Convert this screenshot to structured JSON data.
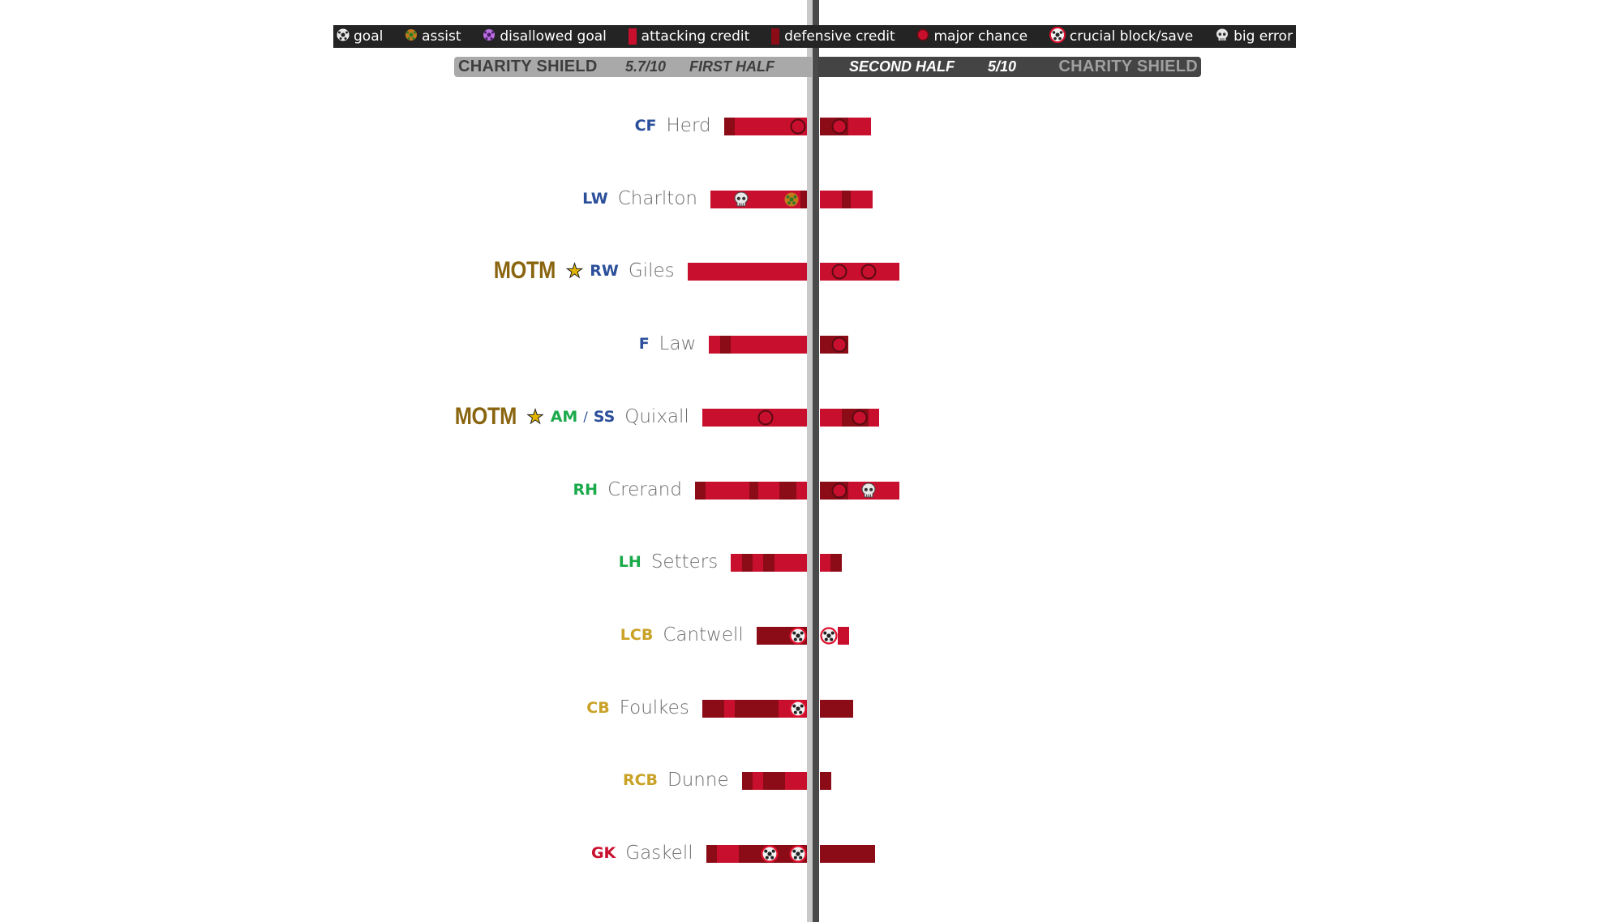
{
  "legend": {
    "items": [
      {
        "icon": "goal-icon",
        "label": "goal"
      },
      {
        "icon": "assist-icon",
        "label": "assist"
      },
      {
        "icon": "disallowed-goal-icon",
        "label": "disallowed goal"
      },
      {
        "icon": "attacking-credit-swatch",
        "label": "attacking credit"
      },
      {
        "icon": "defensive-credit-swatch",
        "label": "defensive credit"
      },
      {
        "icon": "major-chance-icon",
        "label": "major chance"
      },
      {
        "icon": "crucial-block-icon",
        "label": "crucial block/save"
      },
      {
        "icon": "big-error-icon",
        "label": "big error"
      }
    ]
  },
  "header": {
    "first": {
      "competition": "CHARITY SHIELD",
      "rating": "5.7/10",
      "half": "FIRST HALF"
    },
    "second": {
      "competition": "CHARITY SHIELD",
      "rating": "5/10",
      "half": "SECOND HALF"
    }
  },
  "colors": {
    "attacking": "#c8102e",
    "defensive": "#8b0b17",
    "forward": "#2b4f9a",
    "midfield": "#1aaa4a",
    "defence": "#c9a227",
    "goalkeeper": "#c8102e",
    "motm": "#8a6510"
  },
  "chart_data": {
    "type": "bar",
    "segment_types": [
      "a = attacking credit",
      "d = defensive credit"
    ],
    "players": [
      {
        "motm": "",
        "positions": [
          {
            "code": "CF",
            "group": "forward"
          }
        ],
        "name": "Herd",
        "first_half": {
          "segments": [
            [
              "d",
              1
            ],
            [
              "a",
              5
            ]
          ],
          "markers": [
            "major chance"
          ]
        },
        "second_half": {
          "segments": [
            [
              "d",
              1
            ]
          ],
          "markers": [
            "major chance"
          ],
          "after": [
            [
              "a",
              2
            ]
          ]
        }
      },
      {
        "motm": "",
        "positions": [
          {
            "code": "LW",
            "group": "forward"
          }
        ],
        "name": "Charlton",
        "first_half": {
          "segments": [
            [
              "a",
              2
            ]
          ],
          "markers": [
            "big error"
          ],
          "after": [
            [
              "a",
              3
            ]
          ],
          "markers2": [
            "assist"
          ],
          "after2": [
            [
              "d",
              0.6
            ]
          ]
        },
        "second_half": {
          "segments": [
            [
              "a",
              2
            ],
            [
              "d",
              0.8
            ],
            [
              "a",
              2
            ]
          ],
          "markers": []
        }
      },
      {
        "motm": "MOTM",
        "positions": [
          {
            "code": "RW",
            "group": "forward"
          }
        ],
        "name": "Giles",
        "first_half": {
          "segments": [
            [
              "a",
              11
            ]
          ],
          "markers": []
        },
        "second_half": {
          "segments": [
            [
              "a",
              1
            ]
          ],
          "markers": [
            "major chance"
          ],
          "after": [
            [
              "a",
              1
            ]
          ],
          "markers2": [
            "major chance"
          ],
          "after2": [
            [
              "a",
              2
            ]
          ]
        }
      },
      {
        "motm": "",
        "positions": [
          {
            "code": "F",
            "group": "forward"
          }
        ],
        "name": "Law",
        "first_half": {
          "segments": [
            [
              "a",
              1
            ],
            [
              "d",
              1
            ],
            [
              "a",
              7
            ]
          ],
          "markers": []
        },
        "second_half": {
          "segments": [
            [
              "d",
              1
            ]
          ],
          "markers": [
            "major chance"
          ]
        }
      },
      {
        "motm": "MOTM",
        "positions": [
          {
            "code": "AM",
            "group": "midfield"
          },
          {
            "code": "SS",
            "group": "forward"
          }
        ],
        "name": "Quixall",
        "first_half": {
          "segments": [
            [
              "a",
              5
            ]
          ],
          "markers": [
            "major chance"
          ],
          "after": [
            [
              "a",
              3
            ]
          ]
        },
        "second_half": {
          "segments": [
            [
              "a",
              2
            ],
            [
              "d",
              0.8
            ]
          ],
          "markers": [
            "major chance"
          ],
          "after": [
            [
              "a",
              1
            ]
          ]
        }
      },
      {
        "motm": "",
        "positions": [
          {
            "code": "RH",
            "group": "midfield"
          }
        ],
        "name": "Crerand",
        "first_half": {
          "segments": [
            [
              "d",
              1
            ],
            [
              "a",
              4
            ],
            [
              "d",
              0.8
            ],
            [
              "a",
              2
            ],
            [
              "d",
              1.5
            ],
            [
              "a",
              1
            ]
          ],
          "markers": []
        },
        "second_half": {
          "segments": [
            [
              "d",
              1
            ]
          ],
          "markers": [
            "major chance"
          ],
          "after": [
            [
              "a",
              1
            ]
          ],
          "markers2": [
            "big error"
          ],
          "after2": [
            [
              "a",
              2
            ]
          ]
        }
      },
      {
        "motm": "",
        "positions": [
          {
            "code": "LH",
            "group": "midfield"
          }
        ],
        "name": "Setters",
        "first_half": {
          "segments": [
            [
              "a",
              1
            ],
            [
              "d",
              1
            ],
            [
              "a",
              1
            ],
            [
              "d",
              1
            ],
            [
              "a",
              3
            ]
          ],
          "markers": []
        },
        "second_half": {
          "segments": [
            [
              "a",
              1
            ],
            [
              "d",
              1
            ]
          ],
          "markers": []
        }
      },
      {
        "motm": "",
        "positions": [
          {
            "code": "LCB",
            "group": "defence"
          }
        ],
        "name": "Cantwell",
        "first_half": {
          "segments": [
            [
              "d",
              3
            ]
          ],
          "markers": [
            "crucial block/save"
          ]
        },
        "second_half": {
          "segments": [],
          "markers": [
            "crucial block/save"
          ],
          "after": [
            [
              "a",
              1
            ]
          ]
        }
      },
      {
        "motm": "",
        "positions": [
          {
            "code": "CB",
            "group": "defence"
          }
        ],
        "name": "Foulkes",
        "first_half": {
          "segments": [
            [
              "d",
              2
            ],
            [
              "a",
              1
            ],
            [
              "d",
              4
            ],
            [
              "a",
              1
            ]
          ],
          "markers": [
            "crucial block/save"
          ]
        },
        "second_half": {
          "segments": [
            [
              "d",
              3
            ]
          ],
          "markers": []
        }
      },
      {
        "motm": "",
        "positions": [
          {
            "code": "RCB",
            "group": "defence"
          }
        ],
        "name": "Dunne",
        "first_half": {
          "segments": [
            [
              "d",
              1
            ],
            [
              "a",
              1
            ],
            [
              "d",
              2
            ],
            [
              "a",
              2
            ]
          ],
          "markers": []
        },
        "second_half": {
          "segments": [
            [
              "d",
              1
            ]
          ],
          "markers": []
        }
      },
      {
        "motm": "",
        "positions": [
          {
            "code": "GK",
            "group": "goalkeeper"
          }
        ],
        "name": "Gaskell",
        "first_half": {
          "segments": [
            [
              "d",
              1
            ],
            [
              "a",
              2
            ],
            [
              "d",
              2
            ]
          ],
          "markers": [
            "crucial block/save"
          ],
          "after": [
            [
              "d",
              1
            ]
          ],
          "markers2": [
            "crucial block/save"
          ]
        },
        "second_half": {
          "segments": [
            [
              "d",
              5
            ]
          ],
          "markers": []
        }
      }
    ]
  }
}
